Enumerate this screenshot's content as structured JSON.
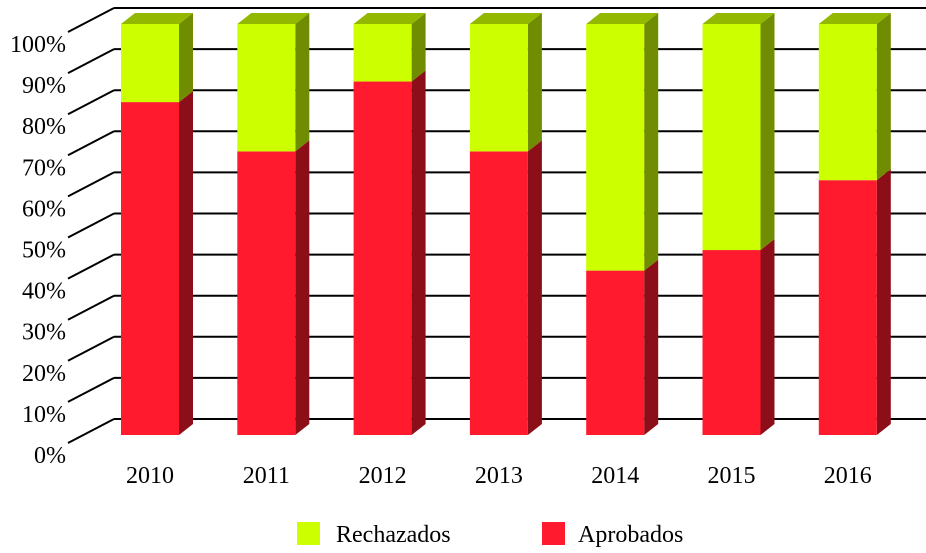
{
  "chart_data": {
    "type": "bar",
    "stacked": true,
    "three_d": true,
    "categories": [
      "2010",
      "2011",
      "2012",
      "2013",
      "2014",
      "2015",
      "2016"
    ],
    "series": [
      {
        "name": "Aprobados",
        "color": "#ff1a2e",
        "values": [
          81,
          69,
          86,
          69,
          40,
          45,
          62
        ]
      },
      {
        "name": "Rechazados",
        "color": "#ccff00",
        "values": [
          19,
          31,
          14,
          31,
          60,
          55,
          38
        ]
      }
    ],
    "y_ticks": [
      "0%",
      "10%",
      "20%",
      "30%",
      "40%",
      "50%",
      "60%",
      "70%",
      "80%",
      "90%",
      "100%"
    ],
    "ylim": [
      0,
      100
    ],
    "grid": true,
    "legend": {
      "position": "bottom",
      "order": [
        "Rechazados",
        "Aprobados"
      ]
    }
  }
}
